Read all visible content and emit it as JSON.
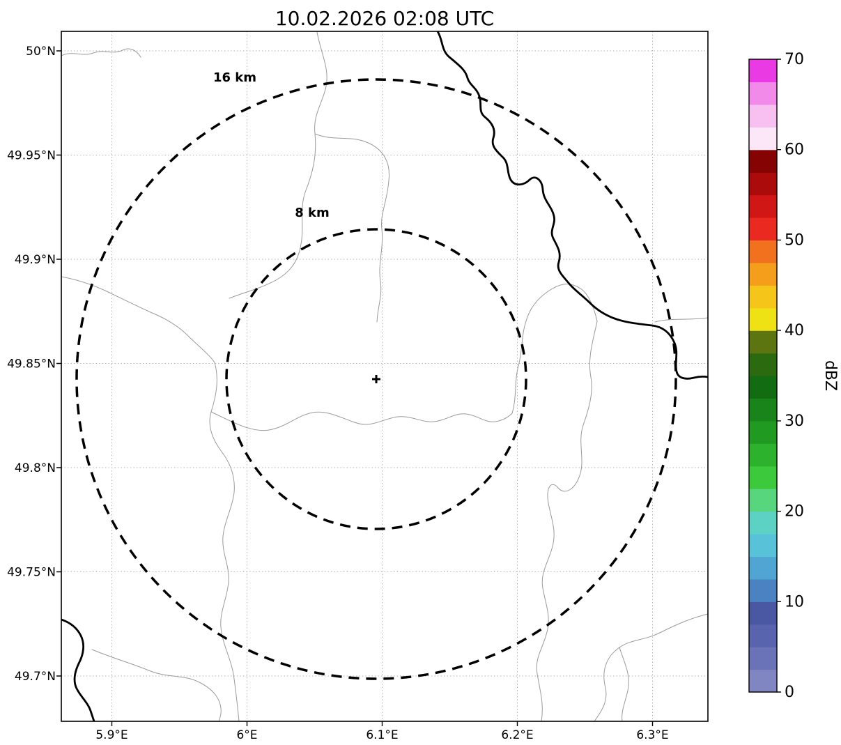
{
  "title": "10.02.2026 02:08 UTC",
  "axes": {
    "lat_labels": [
      "50°N",
      "49.95°N",
      "49.9°N",
      "49.85°N",
      "49.8°N",
      "49.75°N",
      "49.7°N"
    ],
    "lon_labels": [
      "5.9°E",
      "6°E",
      "6.1°E",
      "6.2°E",
      "6.3°E"
    ]
  },
  "rings": {
    "outer": "16 km",
    "inner": "8 km"
  },
  "colorbar": {
    "label": "dBZ",
    "tick_labels": [
      "0",
      "10",
      "20",
      "30",
      "40",
      "50",
      "60",
      "70"
    ],
    "range": [
      0,
      70
    ],
    "colors": [
      "#7f86c2",
      "#6a73b8",
      "#5865ae",
      "#4a58a4",
      "#4a82c2",
      "#51a5d2",
      "#58c3d8",
      "#5cd2c4",
      "#58d67e",
      "#3cc93c",
      "#2db22d",
      "#219a21",
      "#198419",
      "#126c12",
      "#2c6a0f",
      "#5d7510",
      "#efe214",
      "#f6c51a",
      "#f59e1c",
      "#f2711e",
      "#ea2a20",
      "#d11616",
      "#ab0b0b",
      "#850303",
      "#fbe7f7",
      "#f8c0f1",
      "#f28aea",
      "#e93ae3"
    ]
  },
  "chart_data": {
    "type": "map",
    "kind": "weather-radar range map",
    "title": "10.02.2026 02:08 UTC",
    "lat_ticks_deg_n": [
      50,
      49.95,
      49.9,
      49.85,
      49.8,
      49.75,
      49.7
    ],
    "lon_ticks_deg_e": [
      5.9,
      6.0,
      6.1,
      6.2,
      6.3
    ],
    "range_rings_km": [
      8,
      16
    ],
    "radar_echoes": "none visible",
    "colorbar": {
      "label": "dBZ",
      "min": 0,
      "max": 70,
      "tick_step": 10
    }
  }
}
